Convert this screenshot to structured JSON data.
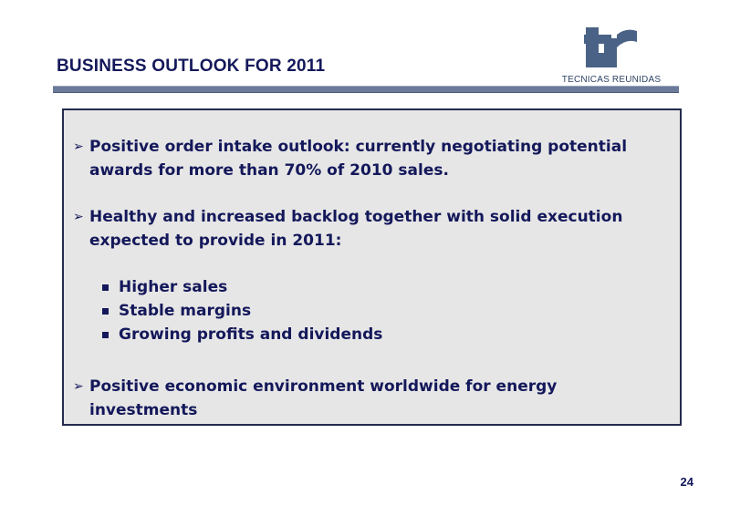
{
  "slide": {
    "title": "BUSINESS OUTLOOK FOR 2011",
    "page_number": "24"
  },
  "logo": {
    "text": "TECNICAS REUNIDAS",
    "monogram": "tr",
    "color": "#4a6285"
  },
  "bullets": [
    {
      "text": "Positive order intake outlook: currently negotiating potential awards for more than 70% of 2010 sales."
    },
    {
      "text": "Healthy and increased backlog together with solid execution expected to provide in 2011:"
    },
    {
      "text": "Positive economic environment worldwide for energy investments"
    }
  ],
  "sub_bullets": [
    {
      "text": "Higher sales"
    },
    {
      "text": "Stable margins"
    },
    {
      "text": "Growing profits and dividends"
    }
  ],
  "icons": {
    "main_bullet": "arrow-bullet-icon",
    "sub_bullet": "square-bullet-icon"
  },
  "colors": {
    "text": "#14185a",
    "box_background": "#e6e6e6",
    "title_bar": "#6b7a99"
  }
}
